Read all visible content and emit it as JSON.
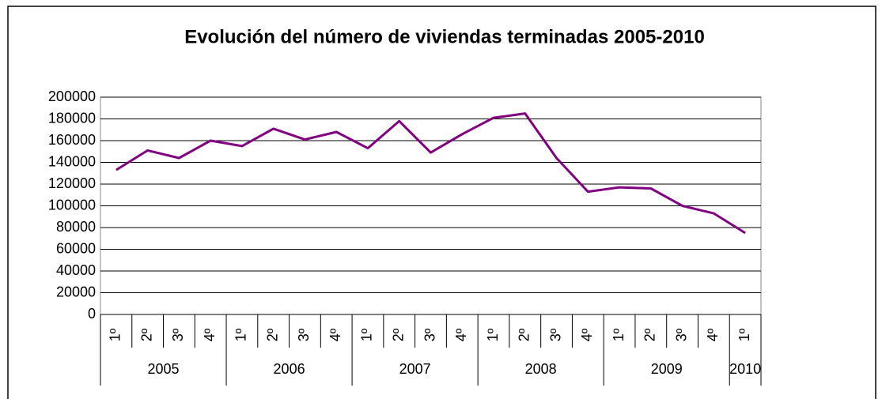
{
  "chart_data": {
    "type": "line",
    "title": "Evolución del número de viviendas terminadas 2005-2010",
    "groups": [
      {
        "name": "2005",
        "categories": [
          "1º",
          "2º",
          "3º",
          "4º"
        ]
      },
      {
        "name": "2006",
        "categories": [
          "1º",
          "2º",
          "3º",
          "4º"
        ]
      },
      {
        "name": "2007",
        "categories": [
          "1º",
          "2º",
          "3º",
          "4º"
        ]
      },
      {
        "name": "2008",
        "categories": [
          "1º",
          "2º",
          "3º",
          "4º"
        ]
      },
      {
        "name": "2009",
        "categories": [
          "1º",
          "2º",
          "3º",
          "4º"
        ]
      },
      {
        "name": "2010",
        "categories": [
          "1º"
        ]
      }
    ],
    "values": [
      133000,
      151000,
      144000,
      160000,
      155000,
      171000,
      161000,
      168000,
      153000,
      178000,
      149000,
      166000,
      181000,
      185000,
      144000,
      113000,
      117000,
      116000,
      100000,
      93000,
      75000
    ],
    "color": "#800080",
    "ylim": [
      0,
      200000
    ],
    "yticks": [
      0,
      20000,
      40000,
      60000,
      80000,
      100000,
      120000,
      140000,
      160000,
      180000,
      200000
    ],
    "grid": true
  }
}
